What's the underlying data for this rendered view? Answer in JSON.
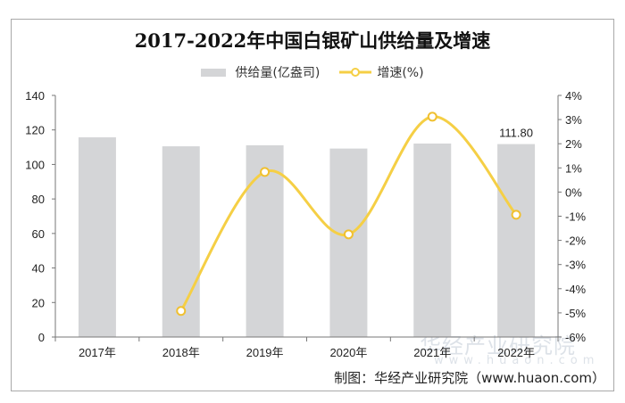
{
  "chart_data": {
    "type": "bar+line",
    "title": "2017-2022年中国白银矿山供给量及增速",
    "categories": [
      "2017年",
      "2018年",
      "2019年",
      "2020年",
      "2021年",
      "2022年"
    ],
    "series": [
      {
        "name": "供给量(亿盎司)",
        "type": "bar",
        "axis": "left",
        "color": "#d4d5d7",
        "values": [
          115.7,
          110.5,
          111.1,
          109.2,
          112.1,
          111.8
        ]
      },
      {
        "name": "增速(%)",
        "type": "line",
        "axis": "right",
        "color": "#f5cf45",
        "values": [
          null,
          -4.92,
          0.83,
          -1.75,
          3.12,
          -0.94
        ]
      }
    ],
    "data_labels": [
      {
        "category": "2022年",
        "text": "111.80"
      }
    ],
    "left_axis": {
      "ylim": [
        0,
        140
      ],
      "ticks": [
        "0",
        "20",
        "40",
        "60",
        "80",
        "100",
        "120",
        "140"
      ]
    },
    "right_axis": {
      "ylim": [
        -6,
        4
      ],
      "ticks": [
        "-6%",
        "-5%",
        "-4%",
        "-3%",
        "-2%",
        "-1%",
        "0%",
        "1%",
        "2%",
        "3%",
        "4%"
      ]
    },
    "grid": false,
    "legend": "top"
  },
  "source": "制图：华经产业研究院（www.huaon.com）",
  "watermark": {
    "text": "华经产业研究院",
    "url": "www.huaon.com"
  }
}
